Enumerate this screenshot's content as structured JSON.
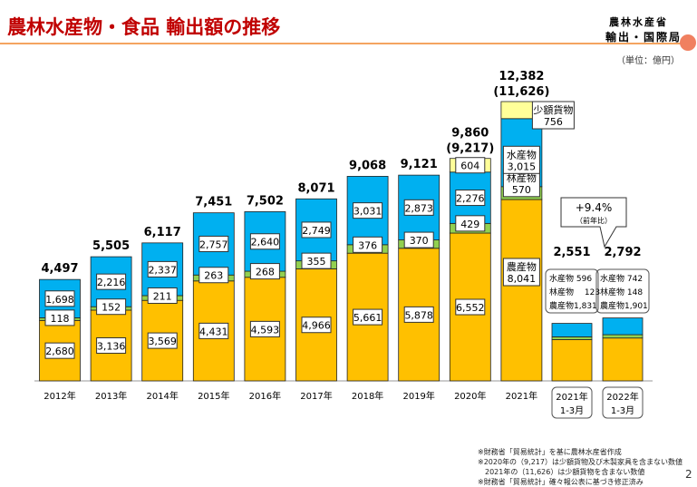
{
  "header": {
    "title": "農林水産物・食品 輸出額の推移",
    "ministry": "農林水産省",
    "bureau": "輸出・国際局",
    "unit": "（単位：億円）",
    "page": "2"
  },
  "notes": [
    "※財務省「貿易統計」を基に農林水産省作成",
    "※2020年の（9,217）は少額貨物及び木製家具を含まない数値",
    "　2021年の（11,626）は少額貨物を含まない数値",
    "※財務省「貿易統計」確々報公表に基づき修正済み"
  ],
  "chart_data": {
    "type": "bar",
    "stacked": true,
    "colors": {
      "agri": "#FFC000",
      "forest": "#92D050",
      "fish": "#00B0F0",
      "small": "#FFFF99"
    },
    "categories": [
      "2012年",
      "2013年",
      "2014年",
      "2015年",
      "2016年",
      "2017年",
      "2018年",
      "2019年",
      "2020年",
      "2021年"
    ],
    "series": [
      {
        "name": "農産物",
        "values": [
          2680,
          3136,
          3569,
          4431,
          4593,
          4966,
          5661,
          5878,
          6552,
          8041
        ]
      },
      {
        "name": "林産物",
        "values": [
          118,
          152,
          211,
          263,
          268,
          355,
          376,
          370,
          429,
          570
        ]
      },
      {
        "name": "水産物",
        "values": [
          1698,
          2216,
          2337,
          2757,
          2640,
          2749,
          3031,
          2873,
          2276,
          3015
        ]
      },
      {
        "name": "少額貨物",
        "values": [
          0,
          0,
          0,
          0,
          0,
          0,
          0,
          0,
          604,
          756
        ]
      }
    ],
    "totals": [
      "4,497",
      "5,505",
      "6,117",
      "7,451",
      "7,502",
      "8,071",
      "9,068",
      "9,121",
      "9,860",
      "12,382"
    ],
    "sub_totals": {
      "2020年": "(9,217)",
      "2021年": "(11,626)"
    },
    "quarterly": {
      "categories": [
        [
          "2021年",
          "1-3月"
        ],
        [
          "2022年",
          "1-3月"
        ]
      ],
      "totals": [
        "2,551",
        "2,792"
      ],
      "fish": [
        596,
        742
      ],
      "forest": [
        123,
        148
      ],
      "agri": [
        1831,
        1901
      ],
      "breakdown": [
        [
          "水産物 596",
          "林産物 　123",
          "農産物1,831"
        ],
        [
          "水産物 742",
          "林産物 148",
          "農産物1,901"
        ]
      ],
      "growth": "+9.4%",
      "growth_label": "（前年比）"
    }
  }
}
